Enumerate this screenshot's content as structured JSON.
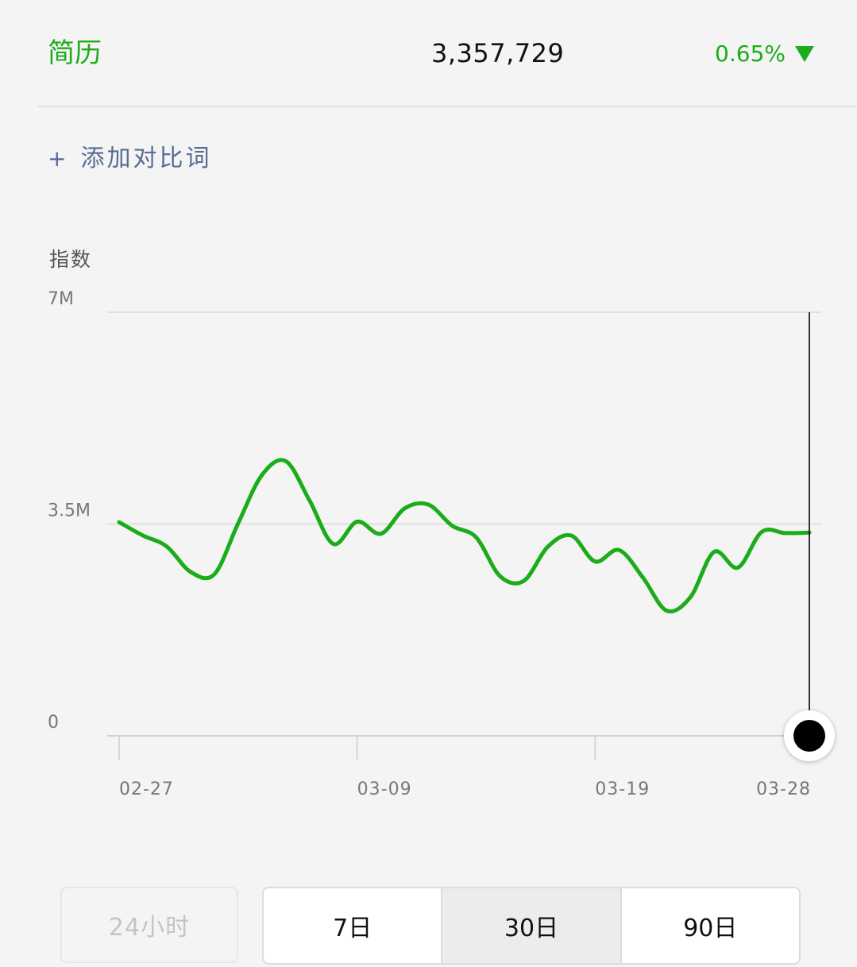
{
  "header": {
    "keyword": "简历",
    "index_value": "3,357,729",
    "change_percent": "0.65%",
    "change_direction_icon": "triangle-down-icon",
    "accent_color": "#1aad19"
  },
  "add_compare": {
    "plus_icon": "+",
    "label": "添加对比词",
    "color": "#576b95"
  },
  "range_buttons": {
    "h24": "24小时",
    "d7": "7日",
    "d30": "30日",
    "d90": "90日",
    "selected": "30日"
  },
  "chart_data": {
    "type": "line",
    "title": "",
    "ylabel": "指数",
    "xlabel": "",
    "ylim": [
      0,
      7000000
    ],
    "y_ticks": [
      0,
      3500000,
      7000000
    ],
    "y_tick_labels": [
      "0",
      "3.5M",
      "7M"
    ],
    "x_ticks": [
      0,
      10,
      20,
      29
    ],
    "x_tick_labels": [
      "02-27",
      "03-09",
      "03-19",
      "03-28"
    ],
    "grid": true,
    "series": [
      {
        "name": "简历",
        "color": "#1aad19",
        "x": [
          0,
          1,
          2,
          3,
          4,
          5,
          6,
          7,
          8,
          9,
          10,
          11,
          12,
          13,
          14,
          15,
          16,
          17,
          18,
          19,
          20,
          21,
          22,
          23,
          24,
          25,
          26,
          27,
          28,
          29
        ],
        "values": [
          3530000,
          3310000,
          3130000,
          2710000,
          2670000,
          3510000,
          4310000,
          4540000,
          3890000,
          3170000,
          3540000,
          3340000,
          3760000,
          3820000,
          3470000,
          3280000,
          2640000,
          2560000,
          3120000,
          3310000,
          2880000,
          3070000,
          2620000,
          2070000,
          2290000,
          3040000,
          2780000,
          3370000,
          3350000,
          3357729
        ]
      }
    ],
    "selected_index": 29
  }
}
